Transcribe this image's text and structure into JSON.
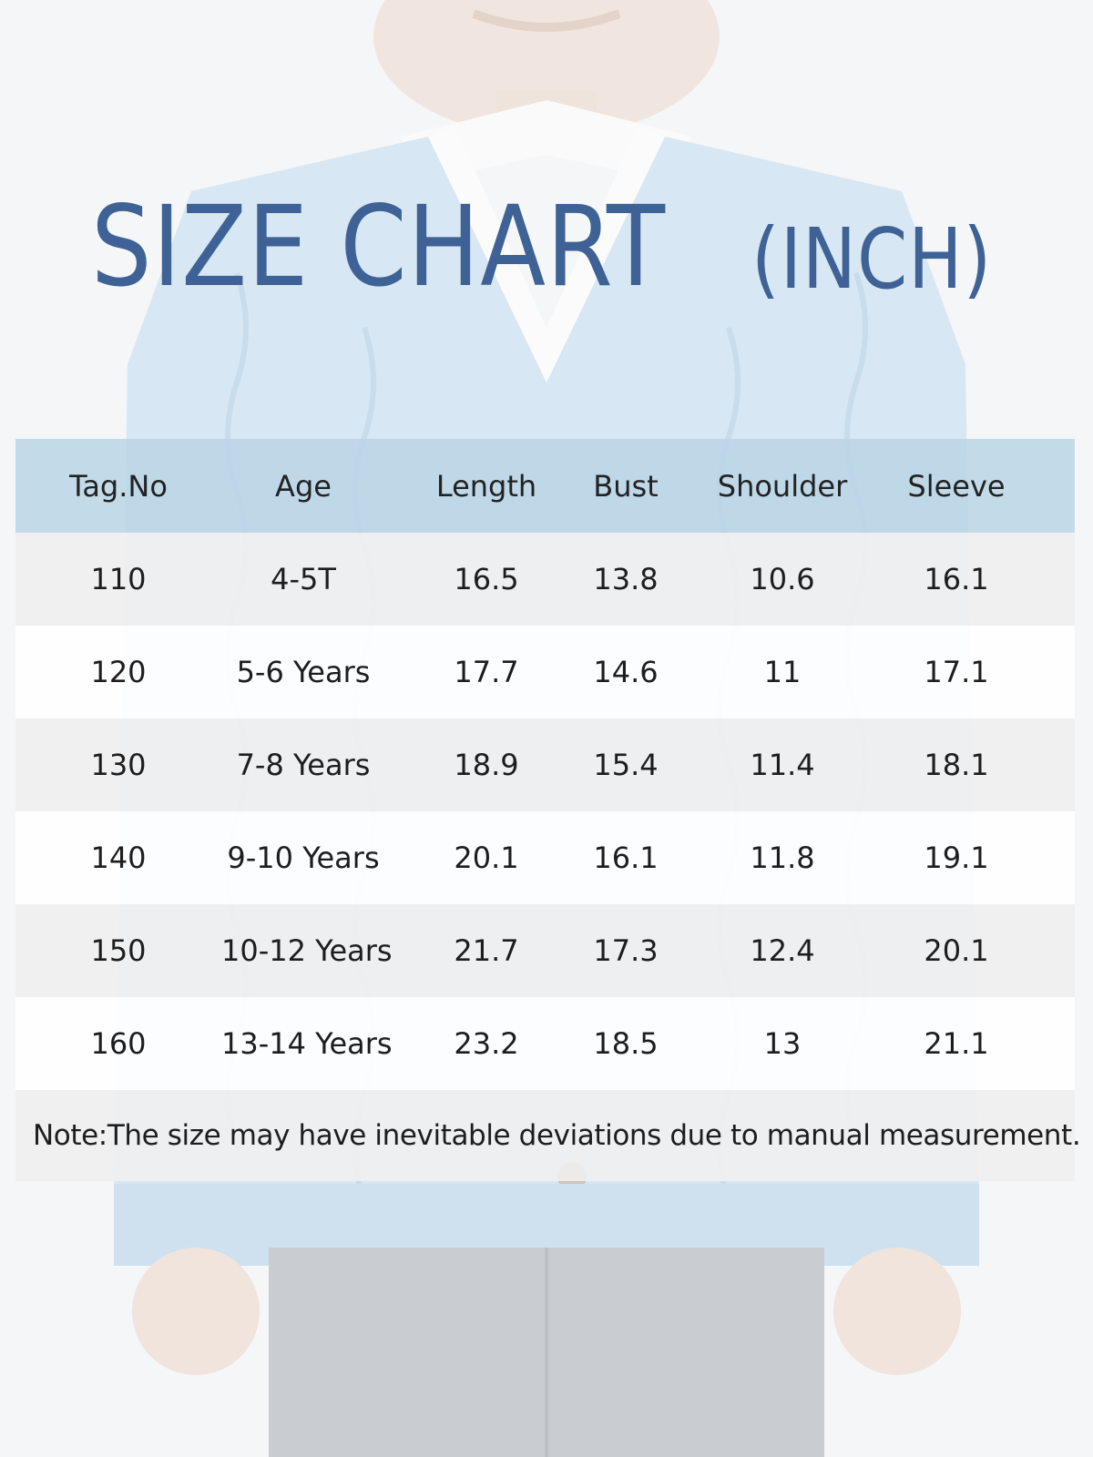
{
  "title": {
    "main": "SIZE CHART",
    "unit": "(INCH)"
  },
  "colors": {
    "title": "#3f6296",
    "header_bg": "#b8d4e5",
    "row_shade": "#f0f0f0",
    "cardigan": "#a9cbe6"
  },
  "table": {
    "headers": [
      "Tag.No",
      "Age",
      "Length",
      "Bust",
      "Shoulder",
      "Sleeve"
    ],
    "rows": [
      [
        "110",
        "4-5T",
        "16.5",
        "13.8",
        "10.6",
        "16.1"
      ],
      [
        "120",
        "5-6 Years",
        "17.7",
        "14.6",
        "11",
        "17.1"
      ],
      [
        "130",
        "7-8 Years",
        "18.9",
        "15.4",
        "11.4",
        "18.1"
      ],
      [
        "140",
        "9-10 Years",
        "20.1",
        "16.1",
        "11.8",
        "19.1"
      ],
      [
        "150",
        "10-12 Years",
        "21.7",
        "17.3",
        "12.4",
        "20.1"
      ],
      [
        "160",
        "13-14 Years",
        "23.2",
        "18.5",
        "13",
        "21.1"
      ]
    ],
    "note": "Note:The size may have inevitable deviations due to manual measurement."
  }
}
